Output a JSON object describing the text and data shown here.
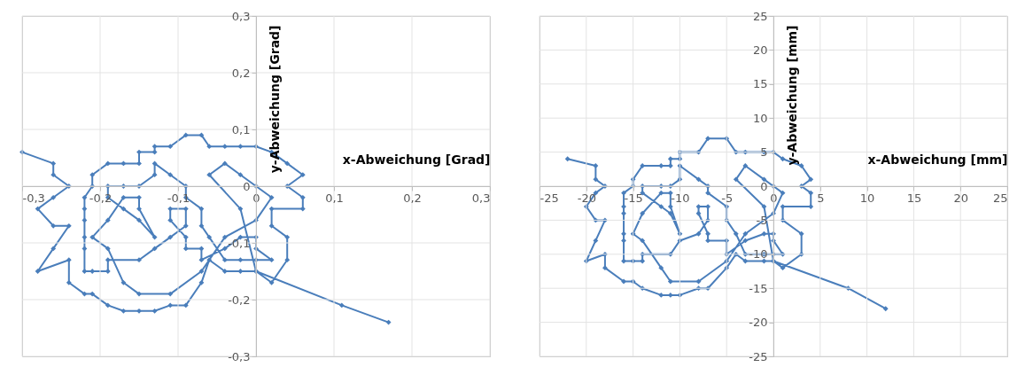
{
  "chart_data": [
    {
      "type": "line",
      "xlabel": "x-Abweichung [Grad]",
      "ylabel": "y-Abweichung [Grad]",
      "grid": true,
      "marker": "diamond",
      "line_style": "solid",
      "xlim": [
        -0.3,
        0.3
      ],
      "ylim": [
        -0.3,
        0.3
      ],
      "xticks": [
        {
          "value": -0.3,
          "label": "-0,3"
        },
        {
          "value": -0.2,
          "label": "-0,2"
        },
        {
          "value": -0.1,
          "label": "-0,1"
        },
        {
          "value": 0,
          "label": "0"
        },
        {
          "value": 0.1,
          "label": "0,1"
        },
        {
          "value": 0.2,
          "label": "0,2"
        },
        {
          "value": 0.3,
          "label": "0,3"
        }
      ],
      "yticks": [
        {
          "value": -0.3,
          "label": "-0,3"
        },
        {
          "value": -0.2,
          "label": "-0,2"
        },
        {
          "value": -0.1,
          "label": "-0,1"
        },
        {
          "value": 0,
          "label": "0"
        },
        {
          "value": 0.1,
          "label": "0,1"
        },
        {
          "value": 0.2,
          "label": "0,2"
        },
        {
          "value": 0.3,
          "label": "0,3"
        }
      ],
      "x": [
        -0.3,
        -0.26,
        -0.26,
        -0.24,
        -0.26,
        -0.28,
        -0.26,
        -0.24,
        -0.26,
        -0.28,
        -0.24,
        -0.24,
        -0.22,
        -0.21,
        -0.19,
        -0.17,
        -0.15,
        -0.13,
        -0.11,
        -0.09,
        -0.07,
        -0.06,
        -0.04,
        -0.02,
        0,
        0.02,
        0.04,
        0.04,
        0.02,
        0.02,
        0.06,
        0.06,
        0.04,
        0.06,
        0.04,
        0.02,
        0,
        -0.02,
        -0.04,
        -0.06,
        -0.07,
        -0.09,
        -0.11,
        -0.13,
        -0.13,
        -0.15,
        -0.15,
        -0.17,
        -0.19,
        -0.21,
        -0.21,
        -0.22,
        -0.22,
        -0.22,
        -0.22,
        -0.22,
        -0.22,
        -0.21,
        -0.19,
        -0.19,
        -0.15,
        -0.13,
        -0.11,
        -0.09,
        -0.09,
        -0.11,
        -0.11,
        -0.09,
        -0.09,
        -0.07,
        -0.07,
        -0.04,
        -0.02,
        0,
        0,
        0.02,
        0,
        -0.02,
        -0.04,
        -0.06,
        -0.07,
        -0.07,
        -0.09,
        -0.09,
        -0.11,
        -0.13,
        -0.13,
        -0.15,
        -0.17,
        -0.19,
        -0.19,
        -0.17,
        -0.15,
        -0.13,
        -0.15,
        -0.15,
        -0.17,
        -0.19,
        -0.21,
        -0.19,
        -0.17,
        -0.15,
        -0.11,
        -0.07,
        -0.04,
        0,
        0.02,
        0,
        -0.02,
        -0.04,
        -0.06,
        -0.02,
        0,
        0.11,
        0.17
      ],
      "series": [
        {
          "color": "#4a7ebb",
          "values": [
            0.06,
            0.04,
            0.02,
            0,
            -0.02,
            -0.04,
            -0.07,
            -0.07,
            -0.11,
            -0.15,
            -0.13,
            -0.17,
            -0.19,
            -0.19,
            -0.21,
            -0.22,
            -0.22,
            -0.22,
            -0.21,
            -0.21,
            -0.17,
            -0.13,
            -0.15,
            -0.15,
            -0.15,
            -0.17,
            -0.13,
            -0.09,
            -0.07,
            -0.04,
            -0.04,
            -0.02,
            0,
            0.02,
            0.04,
            0.06,
            0.07,
            0.07,
            0.07,
            0.07,
            0.09,
            0.09,
            0.07,
            0.07,
            0.06,
            0.06,
            0.04,
            0.04,
            0.04,
            0.02,
            0,
            -0.02,
            -0.04,
            -0.06,
            -0.09,
            -0.11,
            -0.15,
            -0.15,
            -0.15,
            -0.13,
            -0.13,
            -0.11,
            -0.09,
            -0.07,
            -0.04,
            -0.04,
            -0.06,
            -0.09,
            -0.11,
            -0.11,
            -0.13,
            -0.11,
            -0.09,
            -0.09,
            -0.11,
            -0.13,
            -0.13,
            -0.13,
            -0.13,
            -0.09,
            -0.07,
            -0.04,
            -0.02,
            0,
            0.02,
            0.04,
            0.02,
            0,
            0,
            0,
            -0.02,
            -0.04,
            -0.06,
            -0.09,
            -0.04,
            -0.02,
            -0.02,
            -0.06,
            -0.09,
            -0.11,
            -0.17,
            -0.19,
            -0.19,
            -0.15,
            -0.09,
            -0.06,
            -0.02,
            0,
            0.02,
            0.04,
            0.02,
            -0.04,
            -0.15,
            -0.21,
            -0.24
          ]
        }
      ]
    },
    {
      "type": "line",
      "xlabel": "x-Abweichung [mm]",
      "ylabel": "y-Abweichung [mm]",
      "grid": true,
      "marker": "diamond",
      "line_style": "solid",
      "xlim": [
        -25,
        25
      ],
      "ylim": [
        -25,
        25
      ],
      "xticks": [
        -25,
        -20,
        -15,
        -10,
        -5,
        0,
        5,
        10,
        15,
        20,
        25
      ],
      "yticks": [
        -25,
        -20,
        -15,
        -10,
        -5,
        0,
        5,
        10,
        15,
        20,
        25
      ],
      "x": [
        -22,
        -19,
        -19,
        -18,
        -19,
        -20,
        -19,
        -18,
        -19,
        -20,
        -18,
        -18,
        -16,
        -15,
        -14,
        -12,
        -11,
        -10,
        -8,
        -7,
        -5,
        -4,
        -3,
        -1,
        0,
        1,
        3,
        3,
        1,
        1,
        4,
        4,
        3,
        4,
        3,
        1,
        0,
        -1,
        -3,
        -4,
        -5,
        -7,
        -8,
        -10,
        -10,
        -11,
        -11,
        -12,
        -14,
        -15,
        -15,
        -16,
        -16,
        -16,
        -16,
        -16,
        -16,
        -15,
        -14,
        -14,
        -11,
        -10,
        -8,
        -7,
        -7,
        -8,
        -8,
        -7,
        -7,
        -5,
        -5,
        -3,
        -1,
        0,
        0,
        1,
        0,
        -1,
        -3,
        -4,
        -5,
        -5,
        -7,
        -7,
        -8,
        -10,
        -10,
        -11,
        -12,
        -14,
        -14,
        -12,
        -11,
        -10,
        -11,
        -11,
        -12,
        -14,
        -15,
        -14,
        -12,
        -11,
        -8,
        -5,
        -3,
        0,
        1,
        0,
        -1,
        -3,
        -4,
        -1,
        0,
        8,
        12
      ],
      "series": [
        {
          "color": "#4a7ebb",
          "values": [
            4,
            3,
            1,
            0,
            -1,
            -3,
            -5,
            -5,
            -8,
            -11,
            -10,
            -12,
            -14,
            -14,
            -15,
            -16,
            -16,
            -16,
            -15,
            -15,
            -12,
            -10,
            -11,
            -11,
            -11,
            -12,
            -10,
            -7,
            -5,
            -3,
            -3,
            -1,
            0,
            1,
            3,
            4,
            5,
            5,
            5,
            5,
            7,
            7,
            5,
            5,
            4,
            4,
            3,
            3,
            3,
            1,
            0,
            -1,
            -3,
            -4,
            -7,
            -8,
            -11,
            -11,
            -11,
            -10,
            -10,
            -8,
            -7,
            -5,
            -3,
            -3,
            -4,
            -7,
            -8,
            -8,
            -10,
            -8,
            -7,
            -7,
            -8,
            -10,
            -10,
            -10,
            -10,
            -7,
            -5,
            -3,
            -1,
            0,
            1,
            3,
            1,
            0,
            0,
            0,
            -1,
            -3,
            -4,
            -7,
            -3,
            -1,
            -1,
            -4,
            -7,
            -8,
            -12,
            -14,
            -14,
            -11,
            -7,
            -4,
            -1,
            0,
            1,
            3,
            1,
            -3,
            -11,
            -15,
            -18
          ]
        }
      ]
    }
  ]
}
